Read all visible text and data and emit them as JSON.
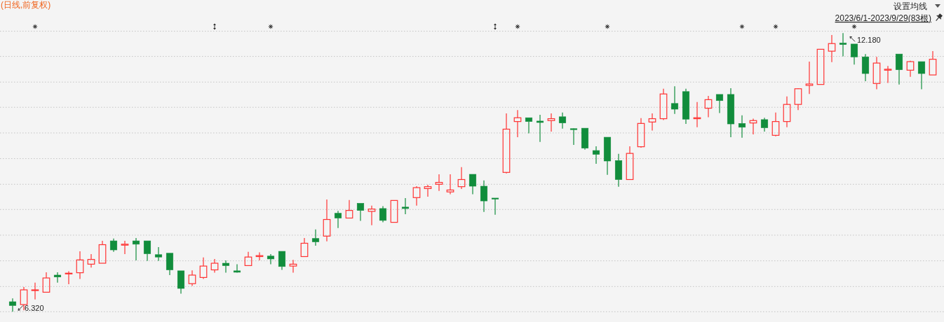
{
  "chart_data": {
    "type": "candlestick",
    "title": "(日线,前复权)",
    "subtitle": "2023/6/1-2023/9/29(83根)",
    "annotations": [
      "设置均线",
      "12.180",
      "6.320"
    ],
    "categories": [
      null,
      null,
      null,
      null,
      null,
      null,
      null,
      null,
      null,
      null,
      null,
      null,
      null,
      null,
      null,
      null,
      null,
      null,
      null,
      null,
      null,
      null,
      null,
      null,
      null,
      null,
      null,
      null,
      null,
      null,
      null,
      null,
      null,
      null,
      null,
      null,
      null,
      null,
      null,
      null,
      null,
      null,
      null,
      null,
      null,
      null,
      null,
      null,
      null,
      null,
      null,
      null,
      null,
      null,
      null,
      null,
      null,
      null,
      null,
      null,
      null,
      null,
      null,
      null,
      null,
      null,
      null,
      null,
      null,
      null,
      null,
      null,
      null,
      null,
      null,
      null,
      null,
      null,
      null,
      null,
      null,
      null,
      null
    ],
    "ohlc": [
      [
        6.53,
        6.6,
        6.32,
        6.45
      ],
      [
        6.47,
        6.84,
        6.35,
        6.78
      ],
      [
        6.77,
        6.93,
        6.58,
        6.78
      ],
      [
        6.73,
        7.15,
        6.73,
        7.03
      ],
      [
        7.09,
        7.15,
        6.93,
        7.05
      ],
      [
        7.12,
        7.17,
        6.9,
        7.13
      ],
      [
        7.14,
        7.59,
        7.01,
        7.41
      ],
      [
        7.32,
        7.53,
        7.25,
        7.42
      ],
      [
        7.34,
        7.81,
        7.34,
        7.73
      ],
      [
        7.81,
        7.86,
        7.58,
        7.62
      ],
      [
        7.72,
        7.81,
        7.53,
        7.74
      ],
      [
        7.81,
        7.87,
        7.4,
        7.74
      ],
      [
        7.81,
        7.81,
        7.39,
        7.54
      ],
      [
        7.52,
        7.68,
        7.39,
        7.47
      ],
      [
        7.55,
        7.55,
        7.09,
        7.2
      ],
      [
        7.18,
        7.18,
        6.7,
        6.81
      ],
      [
        6.91,
        7.19,
        6.86,
        7.09
      ],
      [
        7.04,
        7.46,
        7.01,
        7.28
      ],
      [
        7.2,
        7.43,
        7.14,
        7.34
      ],
      [
        7.34,
        7.4,
        7.14,
        7.29
      ],
      [
        7.18,
        7.32,
        7.14,
        7.15
      ],
      [
        7.29,
        7.58,
        7.29,
        7.47
      ],
      [
        7.48,
        7.57,
        7.4,
        7.5
      ],
      [
        7.49,
        7.53,
        7.32,
        7.43
      ],
      [
        7.59,
        7.59,
        7.2,
        7.27
      ],
      [
        7.28,
        7.41,
        7.14,
        7.32
      ],
      [
        7.48,
        7.87,
        7.48,
        7.76
      ],
      [
        7.86,
        8.05,
        7.71,
        7.79
      ],
      [
        7.91,
        8.68,
        7.8,
        8.26
      ],
      [
        8.39,
        8.44,
        8.08,
        8.29
      ],
      [
        8.29,
        8.67,
        8.29,
        8.45
      ],
      [
        8.6,
        8.6,
        8.23,
        8.45
      ],
      [
        8.43,
        8.55,
        8.14,
        8.48
      ],
      [
        8.49,
        8.54,
        8.2,
        8.24
      ],
      [
        8.2,
        8.66,
        8.2,
        8.66
      ],
      [
        8.52,
        8.71,
        8.37,
        8.49
      ],
      [
        8.72,
        8.96,
        8.55,
        8.93
      ],
      [
        8.91,
        8.99,
        8.74,
        8.95
      ],
      [
        9.0,
        9.21,
        8.86,
        9.04
      ],
      [
        8.84,
        9.21,
        8.79,
        8.88
      ],
      [
        8.95,
        9.36,
        8.9,
        9.1
      ],
      [
        9.21,
        9.21,
        8.79,
        8.96
      ],
      [
        8.96,
        9.08,
        8.42,
        8.65
      ],
      [
        8.71,
        8.71,
        8.36,
        8.69
      ],
      [
        9.25,
        10.49,
        9.23,
        10.16
      ],
      [
        10.32,
        10.56,
        9.99,
        10.4
      ],
      [
        10.4,
        10.4,
        10.07,
        10.32
      ],
      [
        10.33,
        10.46,
        9.89,
        10.3
      ],
      [
        10.34,
        10.49,
        10.11,
        10.38
      ],
      [
        10.42,
        10.51,
        10.17,
        10.29
      ],
      [
        10.17,
        10.18,
        9.83,
        10.15
      ],
      [
        10.18,
        10.18,
        9.73,
        9.76
      ],
      [
        9.71,
        9.8,
        9.43,
        9.63
      ],
      [
        9.99,
        9.99,
        9.2,
        9.49
      ],
      [
        9.5,
        9.64,
        8.95,
        9.1
      ],
      [
        9.1,
        9.8,
        9.1,
        9.65
      ],
      [
        9.79,
        10.39,
        9.77,
        10.28
      ],
      [
        10.31,
        10.49,
        10.13,
        10.38
      ],
      [
        10.38,
        11.01,
        10.35,
        10.9
      ],
      [
        10.7,
        11.06,
        10.48,
        10.58
      ],
      [
        10.95,
        11.01,
        10.27,
        10.37
      ],
      [
        10.38,
        10.73,
        10.2,
        10.4
      ],
      [
        10.6,
        10.86,
        10.41,
        10.78
      ],
      [
        10.89,
        10.89,
        10.5,
        10.76
      ],
      [
        10.89,
        11.02,
        9.99,
        10.27
      ],
      [
        10.28,
        10.45,
        9.98,
        10.2
      ],
      [
        10.29,
        10.38,
        10.05,
        10.34
      ],
      [
        10.36,
        10.4,
        10.11,
        10.19
      ],
      [
        10.03,
        10.51,
        10.01,
        10.32
      ],
      [
        10.32,
        10.85,
        10.2,
        10.68
      ],
      [
        10.68,
        11.02,
        10.56,
        11.01
      ],
      [
        11.08,
        11.58,
        10.9,
        11.11
      ],
      [
        11.1,
        11.84,
        11.1,
        11.84
      ],
      [
        11.8,
        12.14,
        11.57,
        11.96
      ],
      [
        11.97,
        12.18,
        11.69,
        11.94
      ],
      [
        11.95,
        11.95,
        11.52,
        11.68
      ],
      [
        11.68,
        11.74,
        11.17,
        11.33
      ],
      [
        11.12,
        11.68,
        11.0,
        11.55
      ],
      [
        11.4,
        11.49,
        11.13,
        11.42
      ],
      [
        11.74,
        11.74,
        11.1,
        11.41
      ],
      [
        11.4,
        11.6,
        11.26,
        11.58
      ],
      [
        11.58,
        11.58,
        11.0,
        11.33
      ],
      [
        11.3,
        11.8,
        11.3,
        11.63
      ]
    ],
    "colors": [
      "#118d3c",
      "#ff3333",
      "#ff3333",
      "#ff3333",
      "#118d3c",
      "#ff3333",
      "#ff3333",
      "#ff3333",
      "#ff3333",
      "#118d3c",
      "#ff3333",
      "#118d3c",
      "#118d3c",
      "#118d3c",
      "#118d3c",
      "#118d3c",
      "#ff3333",
      "#ff3333",
      "#ff3333",
      "#118d3c",
      "#118d3c",
      "#ff3333",
      "#ff3333",
      "#118d3c",
      "#118d3c",
      "#ff3333",
      "#ff3333",
      "#118d3c",
      "#ff3333",
      "#118d3c",
      "#ff3333",
      "#118d3c",
      "#ff3333",
      "#118d3c",
      "#ff3333",
      "#118d3c",
      "#ff3333",
      "#ff3333",
      "#ff3333",
      "#ff3333",
      "#ff3333",
      "#118d3c",
      "#118d3c",
      "#118d3c",
      "#ff3333",
      "#ff3333",
      "#118d3c",
      "#118d3c",
      "#ff3333",
      "#118d3c",
      "#118d3c",
      "#118d3c",
      "#118d3c",
      "#118d3c",
      "#118d3c",
      "#ff3333",
      "#ff3333",
      "#ff3333",
      "#ff3333",
      "#118d3c",
      "#118d3c",
      "#ff3333",
      "#ff3333",
      "#118d3c",
      "#118d3c",
      "#118d3c",
      "#ff3333",
      "#118d3c",
      "#ff3333",
      "#ff3333",
      "#ff3333",
      "#ff3333",
      "#ff3333",
      "#ff3333",
      "#118d3c",
      "#118d3c",
      "#118d3c",
      "#ff3333",
      "#ff3333",
      "#118d3c",
      "#ff3333",
      "#118d3c",
      "#ff3333"
    ],
    "yticks": [
      {
        "value": 6.32,
        "label": null
      },
      {
        "value": 6.85,
        "label": null
      },
      {
        "value": 7.39,
        "label": null
      },
      {
        "value": 7.93,
        "label": null
      },
      {
        "value": 8.47,
        "label": null
      },
      {
        "value": 9.0,
        "label": null
      },
      {
        "value": 9.54,
        "label": null
      },
      {
        "value": 10.08,
        "label": null
      },
      {
        "value": 10.62,
        "label": null
      },
      {
        "value": 11.15,
        "label": null
      },
      {
        "value": 11.69,
        "label": null
      },
      {
        "value": 12.22,
        "label": null
      }
    ],
    "grid": "y"
  }
}
